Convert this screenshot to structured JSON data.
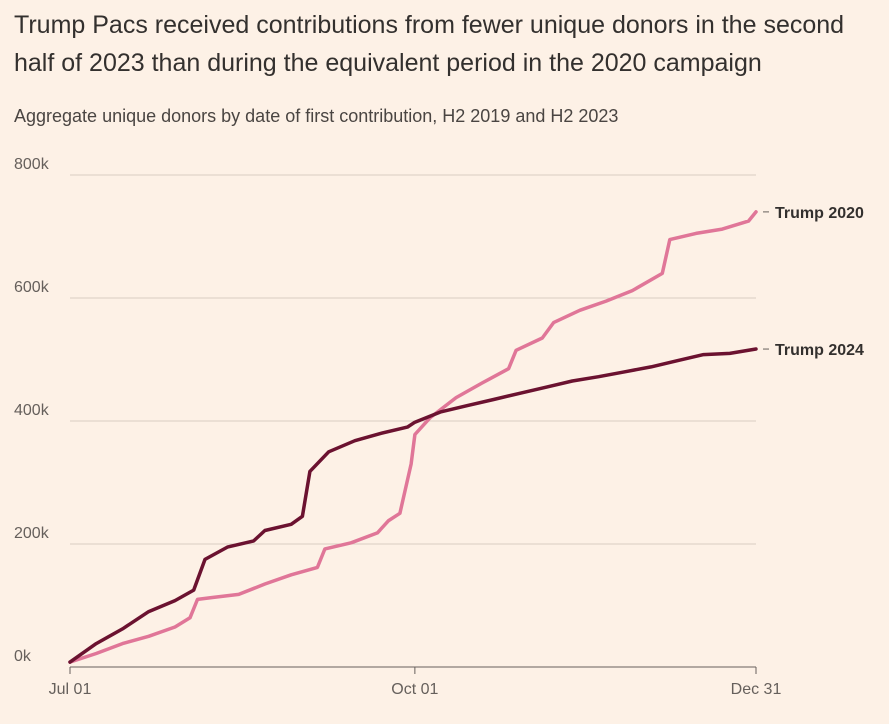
{
  "title": "Trump Pacs received contributions from fewer unique donors in the second half of 2023 than during the equivalent period in the 2020 campaign",
  "subtitle": "Aggregate unique donors by date of first contribution, H2 2019 and H2 2023",
  "chart_data": {
    "type": "line",
    "title": "Trump Pacs received contributions from fewer unique donors in the second half of 2023 than during the equivalent period in the 2020 campaign",
    "subtitle": "Aggregate unique donors by date of first contribution, H2 2019 and H2 2023",
    "xlabel": "",
    "ylabel": "",
    "x_domain": [
      "Jul 01",
      "Dec 31"
    ],
    "x_ticks": [
      "Jul 01",
      "Oct 01",
      "Dec 31"
    ],
    "y_ticks": [
      "0k",
      "200k",
      "400k",
      "600k",
      "800k"
    ],
    "ylim": [
      0,
      800000
    ],
    "grid": true,
    "legend": "direct labels at line ends (right)",
    "series": [
      {
        "name": "Trump 2020",
        "color": "#e07698",
        "points": [
          [
            "Jul 01",
            8000
          ],
          [
            "Jul 08",
            22000
          ],
          [
            "Jul 15",
            38000
          ],
          [
            "Jul 22",
            50000
          ],
          [
            "Jul 29",
            65000
          ],
          [
            "Aug 02",
            80000
          ],
          [
            "Aug 04",
            110000
          ],
          [
            "Aug 08",
            113000
          ],
          [
            "Aug 15",
            118000
          ],
          [
            "Aug 22",
            135000
          ],
          [
            "Aug 29",
            150000
          ],
          [
            "Sep 05",
            162000
          ],
          [
            "Sep 07",
            192000
          ],
          [
            "Sep 14",
            202000
          ],
          [
            "Sep 21",
            218000
          ],
          [
            "Sep 24",
            238000
          ],
          [
            "Sep 27",
            250000
          ],
          [
            "Sep 30",
            330000
          ],
          [
            "Oct 01",
            378000
          ],
          [
            "Oct 05",
            405000
          ],
          [
            "Oct 12",
            438000
          ],
          [
            "Oct 19",
            462000
          ],
          [
            "Oct 26",
            485000
          ],
          [
            "Oct 28",
            515000
          ],
          [
            "Nov 04",
            535000
          ],
          [
            "Nov 07",
            560000
          ],
          [
            "Nov 14",
            580000
          ],
          [
            "Nov 21",
            595000
          ],
          [
            "Nov 28",
            612000
          ],
          [
            "Dec 06",
            640000
          ],
          [
            "Dec 08",
            695000
          ],
          [
            "Dec 15",
            705000
          ],
          [
            "Dec 22",
            712000
          ],
          [
            "Dec 29",
            725000
          ],
          [
            "Dec 31",
            740000
          ]
        ]
      },
      {
        "name": "Trump 2024",
        "color": "#6b1230",
        "points": [
          [
            "Jul 01",
            8000
          ],
          [
            "Jul 08",
            38000
          ],
          [
            "Jul 15",
            62000
          ],
          [
            "Jul 22",
            90000
          ],
          [
            "Jul 29",
            108000
          ],
          [
            "Aug 03",
            125000
          ],
          [
            "Aug 06",
            175000
          ],
          [
            "Aug 12",
            195000
          ],
          [
            "Aug 19",
            205000
          ],
          [
            "Aug 22",
            222000
          ],
          [
            "Aug 29",
            232000
          ],
          [
            "Sep 01",
            245000
          ],
          [
            "Sep 03",
            318000
          ],
          [
            "Sep 08",
            350000
          ],
          [
            "Sep 15",
            368000
          ],
          [
            "Sep 22",
            380000
          ],
          [
            "Sep 29",
            390000
          ],
          [
            "Oct 01",
            398000
          ],
          [
            "Oct 08",
            415000
          ],
          [
            "Oct 15",
            425000
          ],
          [
            "Oct 22",
            435000
          ],
          [
            "Oct 29",
            445000
          ],
          [
            "Nov 05",
            455000
          ],
          [
            "Nov 12",
            465000
          ],
          [
            "Nov 19",
            472000
          ],
          [
            "Nov 26",
            480000
          ],
          [
            "Dec 03",
            488000
          ],
          [
            "Dec 10",
            498000
          ],
          [
            "Dec 17",
            508000
          ],
          [
            "Dec 24",
            510000
          ],
          [
            "Dec 31",
            517000
          ]
        ]
      }
    ]
  }
}
